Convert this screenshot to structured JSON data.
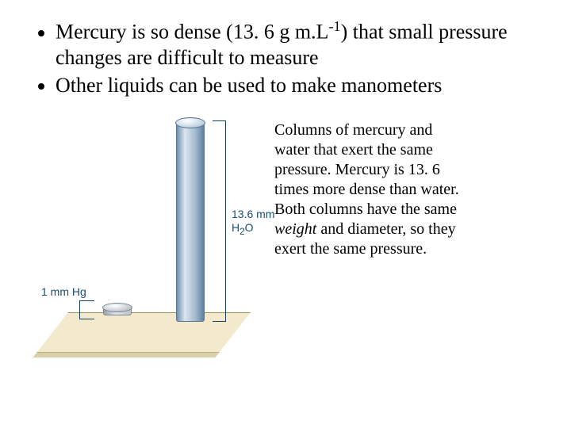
{
  "bullets": {
    "b1_pre": "Mercury is so dense (13. 6 g m.L",
    "b1_exp": "-1",
    "b1_post": ") that small pressure changes are difficult to measure",
    "b2": "Other liquids can be used to make manometers"
  },
  "figure": {
    "hg_label": "1 mm Hg",
    "water_value": "13.6 mm",
    "water_sub": "H",
    "water_sub2": "2",
    "water_sub3": "O",
    "colors": {
      "floor": "#f3e9cc",
      "mercury": "#c9cfd5",
      "water": "#a0b8ce",
      "bracket": "#14405e"
    }
  },
  "caption": {
    "l1": "Columns of mercury and",
    "l2": "water that exert the same",
    "l3": "pressure. Mercury is 13. 6",
    "l4": "times more dense than water.",
    "l5": "Both columns have the same",
    "l6a": "weight",
    "l6b": " and diameter, so they",
    "l7": "exert the same pressure."
  }
}
